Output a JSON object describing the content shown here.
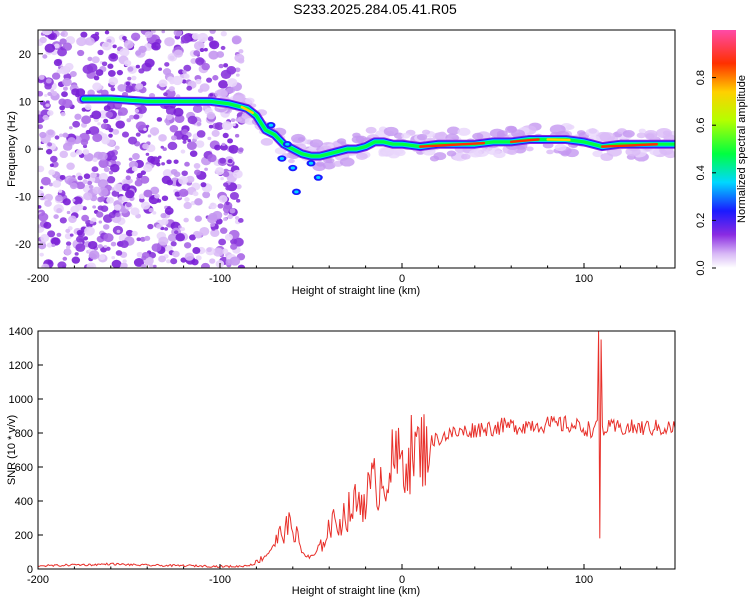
{
  "title": "S233.2025.284.05.41.R05",
  "chart_data": [
    {
      "type": "heatmap",
      "xlabel": "Height of straight line (km)",
      "ylabel": "Frequency (Hz)",
      "xlim": [
        -200,
        150
      ],
      "ylim": [
        -25,
        25
      ],
      "xticks": [
        "-200",
        "-100",
        "0",
        "100"
      ],
      "yticks": [
        "-20",
        "-10",
        "0",
        "10",
        "20"
      ],
      "colorbar": {
        "label": "Normalized spectral amplitude",
        "range": [
          0,
          1
        ],
        "ticks": [
          "0.0",
          "0.2",
          "0.4",
          "0.6",
          "0.8"
        ]
      },
      "ridge": {
        "x": [
          -175,
          -160,
          -140,
          -120,
          -105,
          -95,
          -85,
          -80,
          -75,
          -70,
          -65,
          -60,
          -55,
          -50,
          -45,
          -40,
          -35,
          -30,
          -25,
          -20,
          -15,
          -10,
          -5,
          0,
          10,
          20,
          30,
          40,
          50,
          60,
          70,
          80,
          90,
          100,
          105,
          110,
          120,
          130,
          140,
          150
        ],
        "freq": [
          10.5,
          10.5,
          10,
          10,
          10,
          9.5,
          8.5,
          7,
          4,
          3,
          1,
          0,
          -1,
          -1.5,
          -1.5,
          -1,
          -0.5,
          0,
          0,
          0.5,
          1.5,
          1.5,
          1,
          1,
          0.5,
          1,
          1,
          1,
          1.5,
          1.5,
          2,
          2,
          2,
          1.5,
          1,
          0.5,
          1,
          1,
          1,
          1
        ]
      }
    },
    {
      "type": "line",
      "xlabel": "Height of straight line (km)",
      "ylabel": "SNR (10 * v/v)",
      "xlim": [
        -200,
        150
      ],
      "ylim": [
        0,
        1400
      ],
      "xticks": [
        "-200",
        "-100",
        "0",
        "100"
      ],
      "yticks": [
        "0",
        "200",
        "400",
        "600",
        "800",
        "1000",
        "1200",
        "1400"
      ],
      "series": [
        {
          "name": "SNR",
          "color": "#e8302a",
          "x": [
            -200,
            -190,
            -180,
            -170,
            -160,
            -150,
            -140,
            -130,
            -120,
            -110,
            -100,
            -90,
            -85,
            -80,
            -75,
            -70,
            -65,
            -60,
            -55,
            -50,
            -45,
            -40,
            -35,
            -30,
            -25,
            -20,
            -15,
            -10,
            -5,
            0,
            5,
            10,
            15,
            20,
            25,
            30,
            35,
            40,
            45,
            50,
            55,
            60,
            65,
            70,
            75,
            80,
            85,
            90,
            95,
            100,
            105,
            108,
            110,
            115,
            120,
            130,
            140,
            150
          ],
          "values": [
            20,
            20,
            25,
            25,
            30,
            25,
            22,
            20,
            20,
            18,
            15,
            15,
            20,
            40,
            80,
            150,
            230,
            260,
            100,
            60,
            120,
            250,
            280,
            330,
            390,
            430,
            500,
            540,
            620,
            640,
            680,
            700,
            740,
            770,
            790,
            800,
            810,
            820,
            830,
            830,
            840,
            840,
            840,
            850,
            850,
            850,
            850,
            850,
            840,
            830,
            820,
            830,
            820,
            830,
            830,
            830,
            830,
            830
          ]
        }
      ],
      "spikes": [
        {
          "x": 108,
          "values": [
            1400,
            180,
            1350
          ]
        }
      ]
    }
  ]
}
